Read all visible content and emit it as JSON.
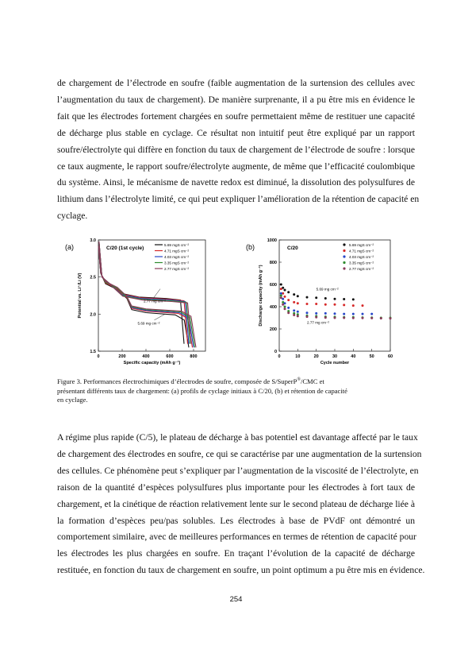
{
  "paragraph1": [
    "de chargement de l’électrode en soufre (faible augmentation de la surtension des cellules avec",
    "l’augmentation du taux de chargement). De manière surprenante, il a pu être mis en évidence le",
    "fait que les électrodes fortement chargées en soufre permettaient même de restituer une capacité",
    "de décharge plus stable en cyclage. Ce résultat non intuitif peut être expliqué par un rapport",
    "soufre/électrolyte qui diffère en fonction du taux de chargement de l’électrode de soufre : lorsque",
    "ce taux augmente, le rapport soufre/électrolyte augmente, de même que l’efficacité coulombique",
    "du système. Ainsi, le mécanisme de navette redox est diminué, la dissolution des polysulfures de",
    "lithium dans l’électrolyte limité, ce qui peut expliquer l’amélioration de la rétention de capacité en",
    "cyclage."
  ],
  "caption": {
    "line1_pre": "Figure 3. Performances électrochimiques d’électrodes de soufre, composée de S/SuperP",
    "line1_sup": "®",
    "line1_post": "/CMC et",
    "line2": "présentant différents taux de chargement: (a) profils de cyclage initiaux à C/20, (b) et rétention de capacité",
    "line3": "en cyclage."
  },
  "paragraph2": [
    "A régime plus rapide (C/5), le plateau de décharge à bas potentiel est davantage affecté par le taux",
    "de chargement des électrodes en soufre, ce qui se caractérise par une augmentation de la surtension",
    "des cellules. Ce phénomène peut s’expliquer par l’augmentation de la viscosité de l’électrolyte, en",
    "raison de la quantité d’espèces polysulfures plus importante pour les électrodes à fort taux de",
    "chargement, et la cinétique de réaction relativement lente sur le second plateau de décharge liée à",
    "la formation d’espèces peu/pas solubles. Les électrodes à base de PVdF ont démontré un",
    "comportement similaire, avec de meilleures performances en termes de rétention de capacité pour",
    "les électrodes les plus chargées en soufre. En traçant l’évolution de la capacité de décharge",
    "restituée, en fonction du taux de chargement en soufre, un point optimum a pu être mis en évidence."
  ],
  "page_number": "254",
  "legend_labels": [
    "5.69 mgS cm⁻²",
    "4.71 mgS cm⁻²",
    "4.03 mgS cm⁻²",
    "3.35 mgS cm⁻²",
    "2.77 mgS cm⁻²"
  ],
  "series_colors": [
    "#111111",
    "#d62828",
    "#2747c8",
    "#2e8b2e",
    "#8b3a5a"
  ],
  "chart_data": [
    {
      "type": "line",
      "panel_label": "(a)",
      "title": "C/20 (1st cycle)",
      "xlabel": "Specific capacity (mAh g⁻¹)",
      "ylabel": "Potential vs. Li⁺/Li (V)",
      "xlim": [
        0,
        900
      ],
      "ylim": [
        1.5,
        3.0
      ],
      "xticks": [
        "0",
        "200",
        "400",
        "600",
        "800"
      ],
      "yticks": [
        "1.5",
        "2.0",
        "2.5",
        "3.0"
      ],
      "annotations": [
        "2.77 mg cm⁻²",
        "5.69 mg cm⁻²"
      ],
      "legend_position": "top-right",
      "series": [
        {
          "name": "5.69 mgS cm⁻²",
          "end_capacity": 760,
          "upper_plateau": 2.33,
          "lower_plateau": 2.02,
          "charge_plateau": 2.25
        },
        {
          "name": "4.71 mgS cm⁻²",
          "end_capacity": 790,
          "upper_plateau": 2.34,
          "lower_plateau": 2.04,
          "charge_plateau": 2.24
        },
        {
          "name": "4.03 mgS cm⁻²",
          "end_capacity": 800,
          "upper_plateau": 2.35,
          "lower_plateau": 2.05,
          "charge_plateau": 2.23
        },
        {
          "name": "3.35 mgS cm⁻²",
          "end_capacity": 810,
          "upper_plateau": 2.35,
          "lower_plateau": 2.06,
          "charge_plateau": 2.22
        },
        {
          "name": "2.77 mgS cm⁻²",
          "end_capacity": 820,
          "upper_plateau": 2.36,
          "lower_plateau": 2.07,
          "charge_plateau": 2.21
        }
      ]
    },
    {
      "type": "scatter",
      "panel_label": "(b)",
      "title": "C/20",
      "xlabel": "Cycle number",
      "ylabel": "Discharge capacity (mAh g⁻¹)",
      "xlim": [
        0,
        60
      ],
      "ylim": [
        0,
        1000
      ],
      "xticks": [
        "0",
        "10",
        "20",
        "30",
        "40",
        "50",
        "60"
      ],
      "yticks": [
        "0",
        "200",
        "400",
        "600",
        "800",
        "1000"
      ],
      "annotations": [
        "5.69 mg cm⁻²",
        "2.77 mg cm⁻²"
      ],
      "legend_position": "top-right",
      "series": [
        {
          "name": "5.69 mgS cm⁻²",
          "x": [
            1,
            2,
            3,
            5,
            8,
            10,
            15,
            20,
            25,
            30,
            35,
            40
          ],
          "y": [
            600,
            570,
            550,
            530,
            510,
            495,
            485,
            480,
            475,
            470,
            468,
            465
          ]
        },
        {
          "name": "4.71 mgS cm⁻²",
          "x": [
            1,
            2,
            3,
            5,
            8,
            10,
            15,
            20,
            25,
            30,
            35,
            40,
            45
          ],
          "y": [
            560,
            520,
            490,
            460,
            440,
            430,
            425,
            425,
            420,
            420,
            415,
            410,
            410
          ]
        },
        {
          "name": "4.03 mgS cm⁻²",
          "x": [
            1,
            2,
            3,
            5,
            8,
            10,
            15,
            20,
            25,
            30,
            35,
            40,
            45,
            50
          ],
          "y": [
            520,
            470,
            430,
            390,
            365,
            355,
            345,
            340,
            340,
            338,
            335,
            335,
            335,
            335
          ]
        },
        {
          "name": "3.35 mgS cm⁻²",
          "x": [
            1,
            2,
            3,
            5,
            8,
            10,
            15,
            20,
            25,
            30,
            35,
            40,
            45,
            50,
            55,
            60
          ],
          "y": [
            500,
            440,
            400,
            360,
            340,
            330,
            320,
            315,
            310,
            308,
            305,
            305,
            303,
            302,
            300,
            300
          ]
        },
        {
          "name": "2.77 mgS cm⁻²",
          "x": [
            1,
            2,
            3,
            5,
            8,
            10,
            15,
            20,
            25,
            30,
            35,
            40,
            45,
            50,
            55,
            60
          ],
          "y": [
            480,
            420,
            380,
            345,
            325,
            315,
            310,
            305,
            302,
            300,
            300,
            298,
            298,
            297,
            296,
            295
          ]
        }
      ]
    }
  ]
}
